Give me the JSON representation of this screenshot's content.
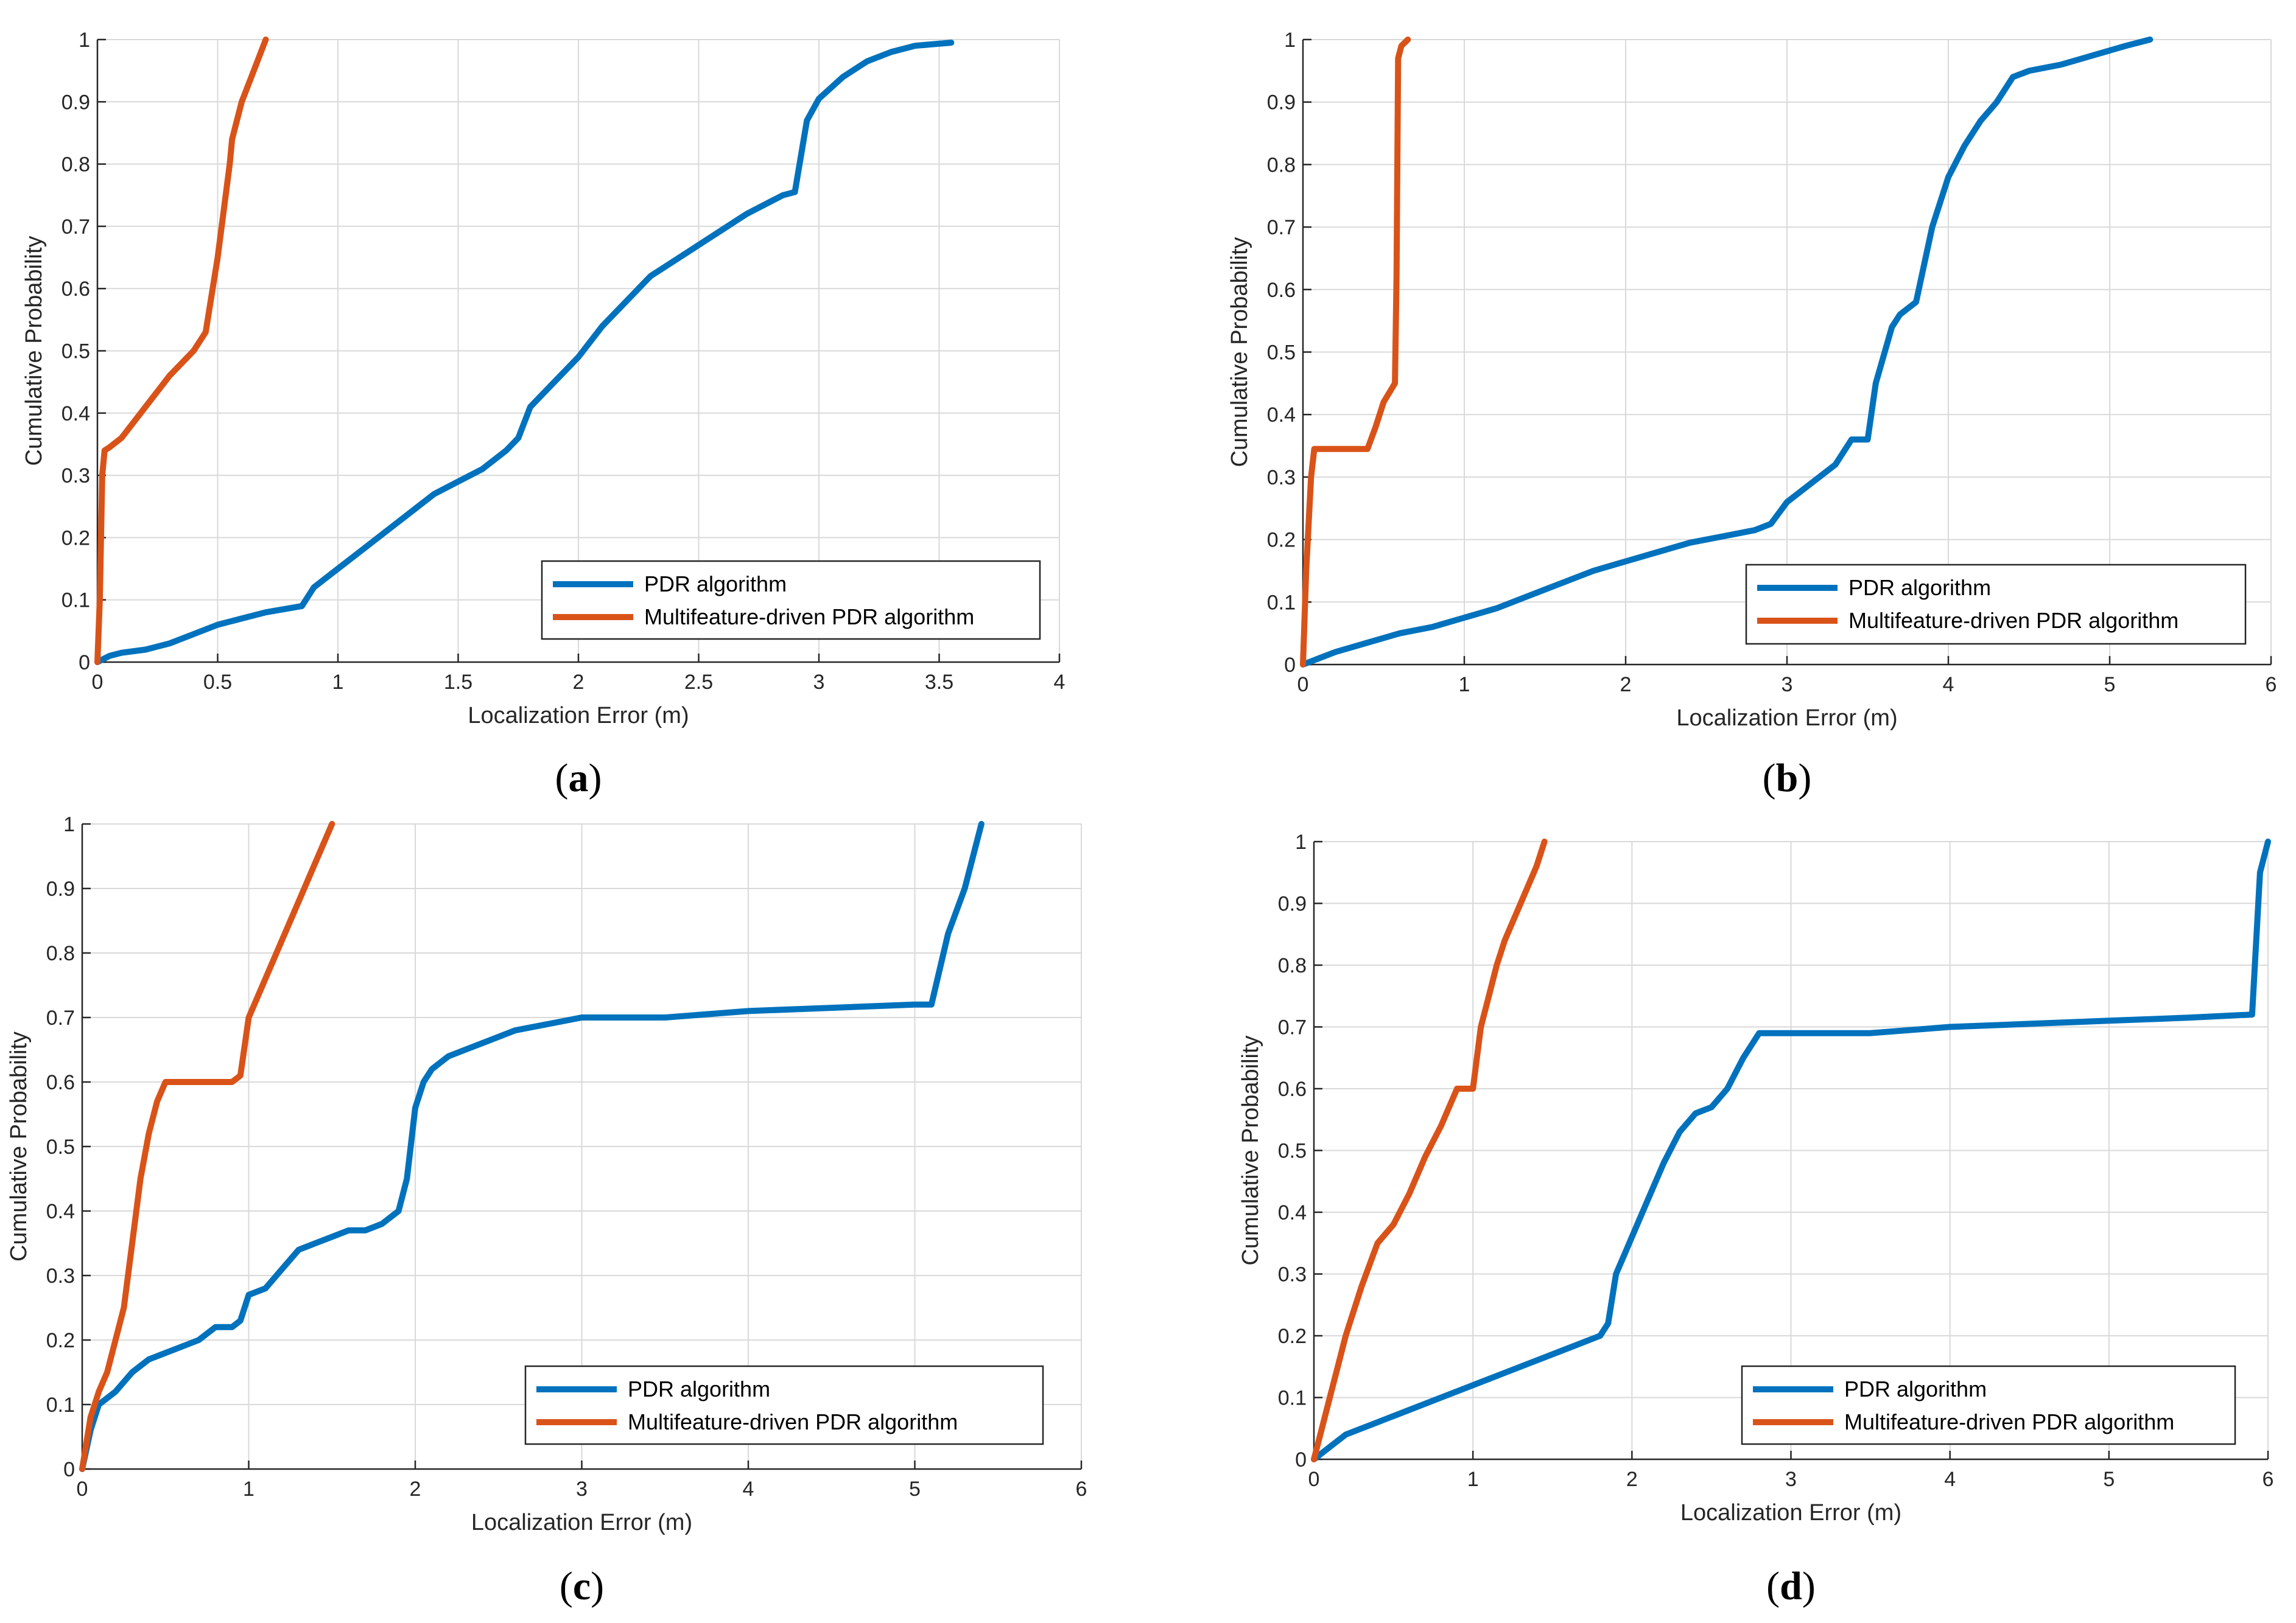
{
  "colors": {
    "pdr": "#0072BD",
    "mf": "#D95319",
    "grid": "#d9d9d9",
    "axis": "#262626"
  },
  "chart_data": [
    {
      "panel": "a",
      "type": "line",
      "xlabel": "Localization Error (m)",
      "ylabel": "Cumulative Probability",
      "xlim": [
        0,
        4
      ],
      "ylim": [
        0,
        1
      ],
      "xticks": [
        0,
        0.5,
        1,
        1.5,
        2,
        2.5,
        3,
        3.5,
        4
      ],
      "xticklabels": [
        "0",
        "0.5",
        "1",
        "1.5",
        "2",
        "2.5",
        "3",
        "3.5",
        "4"
      ],
      "yticks": [
        0,
        0.1,
        0.2,
        0.3,
        0.4,
        0.5,
        0.6,
        0.7,
        0.8,
        0.9,
        1
      ],
      "yticklabels": [
        "0",
        "0.1",
        "0.2",
        "0.3",
        "0.4",
        "0.5",
        "0.6",
        "0.7",
        "0.8",
        "0.9",
        "1"
      ],
      "grid": true,
      "legend_position": "bottom-right",
      "series": [
        {
          "name": "PDR algorithm",
          "color": "#0072BD",
          "x": [
            0,
            0.05,
            0.1,
            0.2,
            0.3,
            0.4,
            0.5,
            0.6,
            0.7,
            0.85,
            0.9,
            1.0,
            1.1,
            1.2,
            1.3,
            1.4,
            1.5,
            1.6,
            1.7,
            1.75,
            1.8,
            1.9,
            2.0,
            2.1,
            2.2,
            2.3,
            2.4,
            2.5,
            2.6,
            2.7,
            2.8,
            2.85,
            2.9,
            2.95,
            3.0,
            3.1,
            3.2,
            3.3,
            3.4,
            3.55
          ],
          "y": [
            0,
            0.01,
            0.015,
            0.02,
            0.03,
            0.045,
            0.06,
            0.07,
            0.08,
            0.09,
            0.12,
            0.15,
            0.18,
            0.21,
            0.24,
            0.27,
            0.29,
            0.31,
            0.34,
            0.36,
            0.41,
            0.45,
            0.49,
            0.54,
            0.58,
            0.62,
            0.645,
            0.67,
            0.695,
            0.72,
            0.74,
            0.75,
            0.755,
            0.87,
            0.905,
            0.94,
            0.965,
            0.98,
            0.99,
            0.995
          ]
        },
        {
          "name": "Multifeature-driven PDR algorithm",
          "color": "#D95319",
          "x": [
            0,
            0.01,
            0.02,
            0.03,
            0.05,
            0.1,
            0.2,
            0.3,
            0.4,
            0.45,
            0.5,
            0.55,
            0.56,
            0.6,
            0.65,
            0.7
          ],
          "y": [
            0,
            0.1,
            0.3,
            0.34,
            0.345,
            0.36,
            0.41,
            0.46,
            0.5,
            0.53,
            0.65,
            0.8,
            0.84,
            0.9,
            0.95,
            1.0
          ]
        }
      ]
    },
    {
      "panel": "b",
      "type": "line",
      "xlabel": "Localization Error (m)",
      "ylabel": "Cumulative Probability",
      "xlim": [
        0,
        6
      ],
      "ylim": [
        0,
        1
      ],
      "xticks": [
        0,
        1,
        2,
        3,
        4,
        5,
        6
      ],
      "xticklabels": [
        "0",
        "1",
        "2",
        "3",
        "4",
        "5",
        "6"
      ],
      "yticks": [
        0,
        0.1,
        0.2,
        0.3,
        0.4,
        0.5,
        0.6,
        0.7,
        0.8,
        0.9,
        1
      ],
      "yticklabels": [
        "0",
        "0.1",
        "0.2",
        "0.3",
        "0.4",
        "0.5",
        "0.6",
        "0.7",
        "0.8",
        "0.9",
        "1"
      ],
      "grid": true,
      "legend_position": "bottom-right",
      "series": [
        {
          "name": "PDR algorithm",
          "color": "#0072BD",
          "x": [
            0,
            0.1,
            0.2,
            0.4,
            0.6,
            0.8,
            1.0,
            1.2,
            1.4,
            1.6,
            1.8,
            2.0,
            2.2,
            2.4,
            2.6,
            2.8,
            2.9,
            3.0,
            3.1,
            3.2,
            3.3,
            3.4,
            3.5,
            3.55,
            3.65,
            3.7,
            3.8,
            3.9,
            4.0,
            4.1,
            4.2,
            4.3,
            4.4,
            4.5,
            4.7,
            4.9,
            5.1,
            5.25
          ],
          "y": [
            0,
            0.01,
            0.02,
            0.035,
            0.05,
            0.06,
            0.075,
            0.09,
            0.11,
            0.13,
            0.15,
            0.165,
            0.18,
            0.195,
            0.205,
            0.215,
            0.225,
            0.26,
            0.28,
            0.3,
            0.32,
            0.36,
            0.36,
            0.45,
            0.54,
            0.56,
            0.58,
            0.7,
            0.78,
            0.83,
            0.87,
            0.9,
            0.94,
            0.95,
            0.96,
            0.975,
            0.99,
            1.0
          ]
        },
        {
          "name": "Multifeature-driven PDR algorithm",
          "color": "#D95319",
          "x": [
            0,
            0.02,
            0.05,
            0.07,
            0.1,
            0.2,
            0.3,
            0.4,
            0.45,
            0.5,
            0.57,
            0.58,
            0.59,
            0.6,
            0.61,
            0.65
          ],
          "y": [
            0,
            0.15,
            0.3,
            0.345,
            0.345,
            0.345,
            0.345,
            0.345,
            0.38,
            0.42,
            0.45,
            0.62,
            0.97,
            0.98,
            0.99,
            1.0
          ]
        }
      ]
    },
    {
      "panel": "c",
      "type": "line",
      "xlabel": "Localization Error (m)",
      "ylabel": "Cumulative Probability",
      "xlim": [
        0,
        6
      ],
      "ylim": [
        0,
        1
      ],
      "xticks": [
        0,
        1,
        2,
        3,
        4,
        5,
        6
      ],
      "xticklabels": [
        "0",
        "1",
        "2",
        "3",
        "4",
        "5",
        "6"
      ],
      "yticks": [
        0,
        0.1,
        0.2,
        0.3,
        0.4,
        0.5,
        0.6,
        0.7,
        0.8,
        0.9,
        1
      ],
      "yticklabels": [
        "0",
        "0.1",
        "0.2",
        "0.3",
        "0.4",
        "0.5",
        "0.6",
        "0.7",
        "0.8",
        "0.9",
        "1"
      ],
      "grid": true,
      "legend_position": "bottom-right",
      "series": [
        {
          "name": "PDR algorithm",
          "color": "#0072BD",
          "x": [
            0,
            0.05,
            0.1,
            0.2,
            0.3,
            0.4,
            0.5,
            0.6,
            0.7,
            0.8,
            0.9,
            0.95,
            1.0,
            1.1,
            1.2,
            1.3,
            1.4,
            1.5,
            1.6,
            1.7,
            1.8,
            1.9,
            1.95,
            2.0,
            2.05,
            2.1,
            2.2,
            2.3,
            2.4,
            2.6,
            2.8,
            3.0,
            3.5,
            4.0,
            4.5,
            5.0,
            5.1,
            5.2,
            5.3,
            5.4
          ],
          "y": [
            0,
            0.06,
            0.1,
            0.12,
            0.15,
            0.17,
            0.18,
            0.19,
            0.2,
            0.22,
            0.22,
            0.23,
            0.27,
            0.28,
            0.31,
            0.34,
            0.35,
            0.36,
            0.37,
            0.37,
            0.38,
            0.4,
            0.45,
            0.56,
            0.6,
            0.62,
            0.64,
            0.65,
            0.66,
            0.68,
            0.69,
            0.7,
            0.7,
            0.71,
            0.715,
            0.72,
            0.72,
            0.83,
            0.9,
            1.0
          ]
        },
        {
          "name": "Multifeature-driven PDR algorithm",
          "color": "#D95319",
          "x": [
            0,
            0.05,
            0.1,
            0.15,
            0.2,
            0.25,
            0.3,
            0.35,
            0.4,
            0.45,
            0.5,
            0.6,
            0.7,
            0.8,
            0.9,
            0.95,
            1.0,
            1.1,
            1.2,
            1.3,
            1.4,
            1.5
          ],
          "y": [
            0,
            0.08,
            0.12,
            0.15,
            0.2,
            0.25,
            0.35,
            0.45,
            0.52,
            0.57,
            0.6,
            0.6,
            0.6,
            0.6,
            0.6,
            0.61,
            0.7,
            0.76,
            0.82,
            0.88,
            0.94,
            1.0
          ]
        }
      ]
    },
    {
      "panel": "d",
      "type": "line",
      "xlabel": "Localization Error (m)",
      "ylabel": "Cumulative Probability",
      "xlim": [
        0,
        6
      ],
      "ylim": [
        0,
        1
      ],
      "xticks": [
        0,
        1,
        2,
        3,
        4,
        5,
        6
      ],
      "xticklabels": [
        "0",
        "1",
        "2",
        "3",
        "4",
        "5",
        "6"
      ],
      "yticks": [
        0,
        0.1,
        0.2,
        0.3,
        0.4,
        0.5,
        0.6,
        0.7,
        0.8,
        0.9,
        1
      ],
      "yticklabels": [
        "0",
        "0.1",
        "0.2",
        "0.3",
        "0.4",
        "0.5",
        "0.6",
        "0.7",
        "0.8",
        "0.9",
        "1"
      ],
      "grid": true,
      "legend_position": "bottom-right",
      "series": [
        {
          "name": "PDR algorithm",
          "color": "#0072BD",
          "x": [
            0,
            0.1,
            0.2,
            0.4,
            0.6,
            0.8,
            1.0,
            1.2,
            1.4,
            1.6,
            1.8,
            1.85,
            1.9,
            1.95,
            2.0,
            2.1,
            2.2,
            2.3,
            2.4,
            2.5,
            2.6,
            2.7,
            2.8,
            3.0,
            3.5,
            4.0,
            4.5,
            5.0,
            5.5,
            5.9,
            5.95,
            6.0
          ],
          "y": [
            0,
            0.02,
            0.04,
            0.06,
            0.08,
            0.1,
            0.12,
            0.14,
            0.16,
            0.18,
            0.2,
            0.22,
            0.3,
            0.33,
            0.36,
            0.42,
            0.48,
            0.53,
            0.56,
            0.57,
            0.6,
            0.65,
            0.69,
            0.69,
            0.69,
            0.7,
            0.705,
            0.71,
            0.715,
            0.72,
            0.95,
            1.0
          ]
        },
        {
          "name": "Multifeature-driven PDR algorithm",
          "color": "#D95319",
          "x": [
            0,
            0.05,
            0.1,
            0.15,
            0.2,
            0.3,
            0.4,
            0.5,
            0.6,
            0.7,
            0.8,
            0.9,
            1.0,
            1.05,
            1.1,
            1.15,
            1.2,
            1.3,
            1.4,
            1.45
          ],
          "y": [
            0,
            0.05,
            0.1,
            0.15,
            0.2,
            0.28,
            0.35,
            0.38,
            0.43,
            0.49,
            0.54,
            0.6,
            0.6,
            0.7,
            0.75,
            0.8,
            0.84,
            0.9,
            0.96,
            1.0
          ]
        }
      ]
    }
  ]
}
